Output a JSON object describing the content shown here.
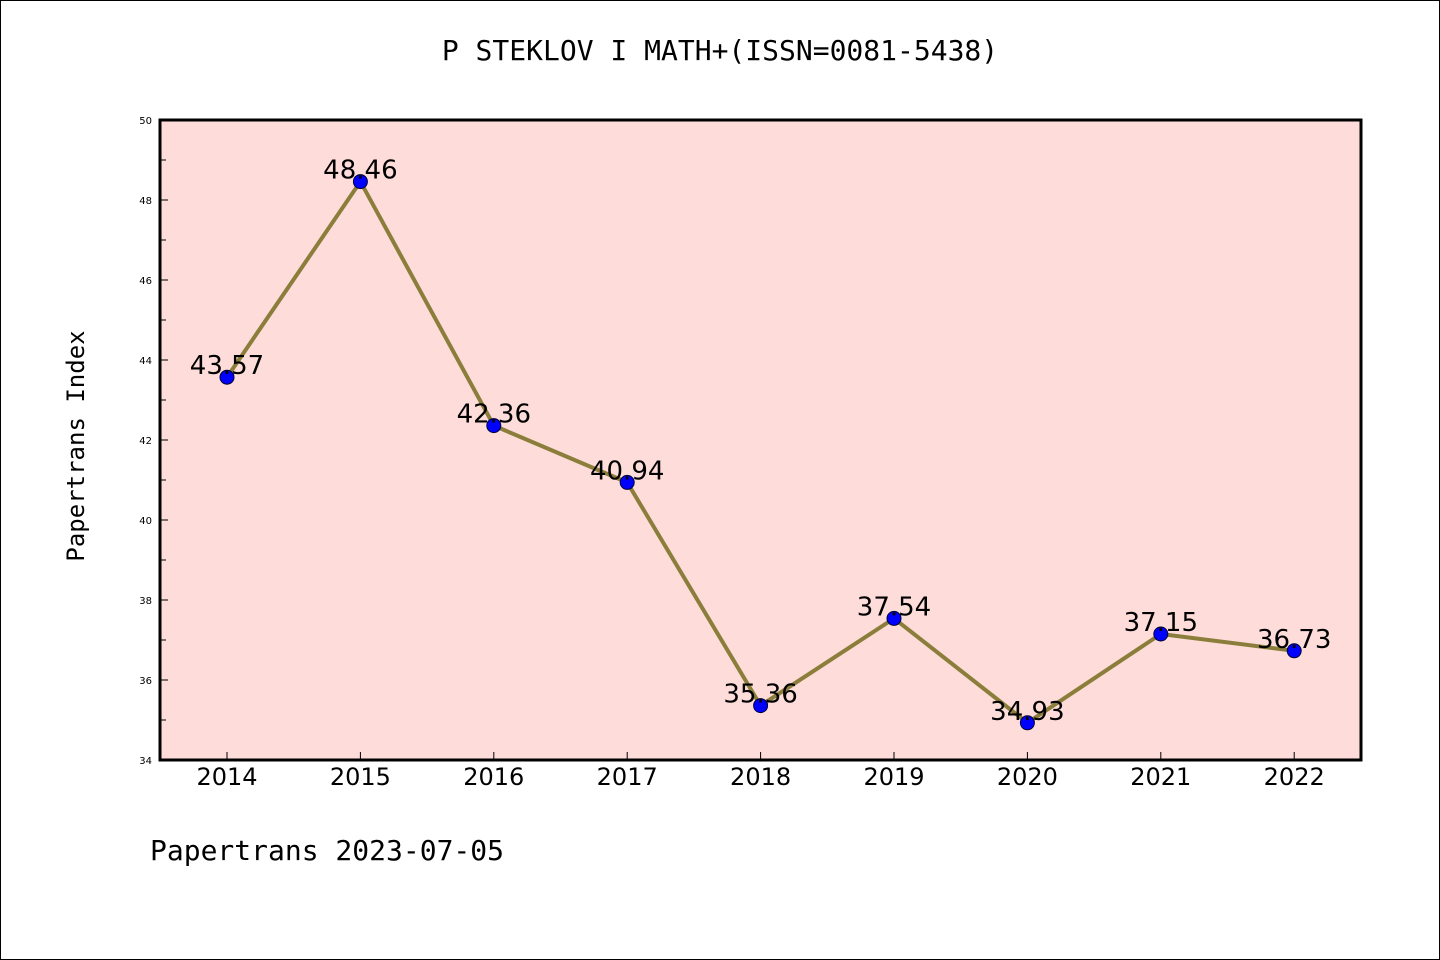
{
  "chart_data": {
    "type": "line",
    "title": "P STEKLOV I MATH+(ISSN=0081-5438)",
    "xlabel": "",
    "ylabel": "Papertrans Index",
    "footer": "Papertrans 2023-07-05",
    "categories": [
      "2014",
      "2015",
      "2016",
      "2017",
      "2018",
      "2019",
      "2020",
      "2021",
      "2022"
    ],
    "series": [
      {
        "name": "Papertrans Index",
        "values": [
          43.57,
          48.46,
          42.36,
          40.94,
          35.36,
          37.54,
          34.93,
          37.15,
          36.73
        ],
        "labels": [
          "43.57",
          "48.46",
          "42.36",
          "40.94",
          "35.36",
          "37.54",
          "34.93",
          "37.15",
          "36.73"
        ]
      }
    ],
    "ylim": [
      34,
      50
    ],
    "yticks": [
      "34",
      "36",
      "38",
      "40",
      "42",
      "44",
      "46",
      "48",
      "50"
    ],
    "grid": false,
    "colors": {
      "plot_background": "#fddcda",
      "line": "#8b7d3a",
      "marker": "#0000ff"
    }
  }
}
